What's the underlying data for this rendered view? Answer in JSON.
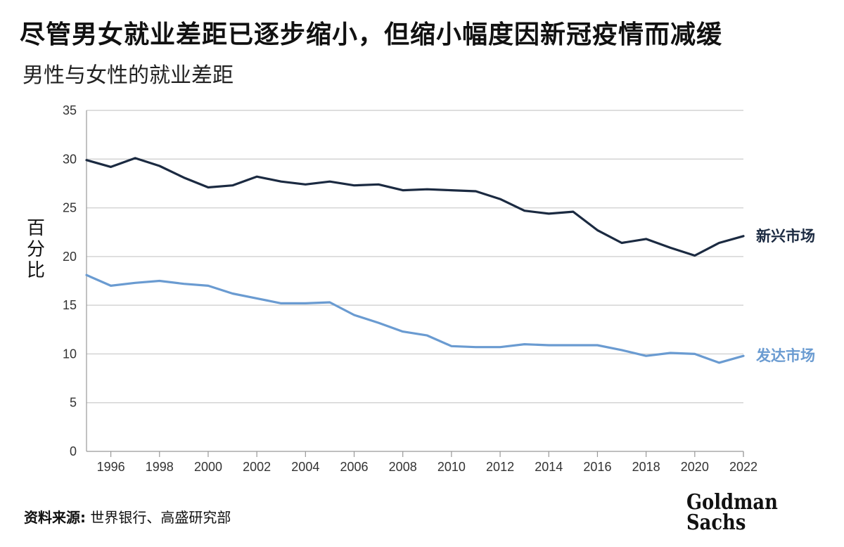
{
  "title": "尽管男女就业差距已逐步缩小，但缩小幅度因新冠疫情而减缓",
  "subtitle": "男性与女性的就业差距",
  "ylabel_chars": [
    "百",
    "分",
    "比"
  ],
  "source": {
    "label": "资料来源:",
    "text": " 世界银行、高盛研究部"
  },
  "logo": {
    "line1": "Goldman",
    "line2": "Sachs"
  },
  "colors": {
    "emerging": "#1b2a41",
    "developed": "#6a9bd1",
    "grid": "#d4d4d4",
    "axis": "#999999"
  },
  "chart_data": {
    "type": "line",
    "title": "男性与女性的就业差距",
    "ylabel": "百分比",
    "xlabel": "",
    "ylim": [
      0,
      35
    ],
    "xlim": [
      1995,
      2022
    ],
    "yticks": [
      0,
      5,
      10,
      15,
      20,
      25,
      30,
      35
    ],
    "xticks": [
      1996,
      1998,
      2000,
      2002,
      2004,
      2006,
      2008,
      2010,
      2012,
      2014,
      2016,
      2018,
      2020,
      2022
    ],
    "grid": true,
    "x": [
      1995,
      1996,
      1997,
      1998,
      1999,
      2000,
      2001,
      2002,
      2003,
      2004,
      2005,
      2006,
      2007,
      2008,
      2009,
      2010,
      2011,
      2012,
      2013,
      2014,
      2015,
      2016,
      2017,
      2018,
      2019,
      2020,
      2021,
      2022
    ],
    "series": [
      {
        "name": "新兴市场",
        "color": "#1b2a41",
        "values": [
          29.9,
          29.2,
          30.1,
          29.3,
          28.1,
          27.1,
          27.3,
          28.2,
          27.7,
          27.4,
          27.7,
          27.3,
          27.4,
          26.8,
          26.9,
          26.8,
          26.7,
          25.9,
          24.7,
          24.4,
          24.6,
          22.7,
          21.4,
          21.8,
          20.9,
          20.1,
          21.4,
          22.1
        ]
      },
      {
        "name": "发达市场",
        "color": "#6a9bd1",
        "values": [
          18.1,
          17.0,
          17.3,
          17.5,
          17.2,
          17.0,
          16.2,
          15.7,
          15.2,
          15.2,
          15.3,
          14.0,
          13.2,
          12.3,
          11.9,
          10.8,
          10.7,
          10.7,
          11.0,
          10.9,
          10.9,
          10.9,
          10.4,
          9.8,
          10.1,
          10.0,
          9.1,
          9.8
        ]
      }
    ]
  }
}
